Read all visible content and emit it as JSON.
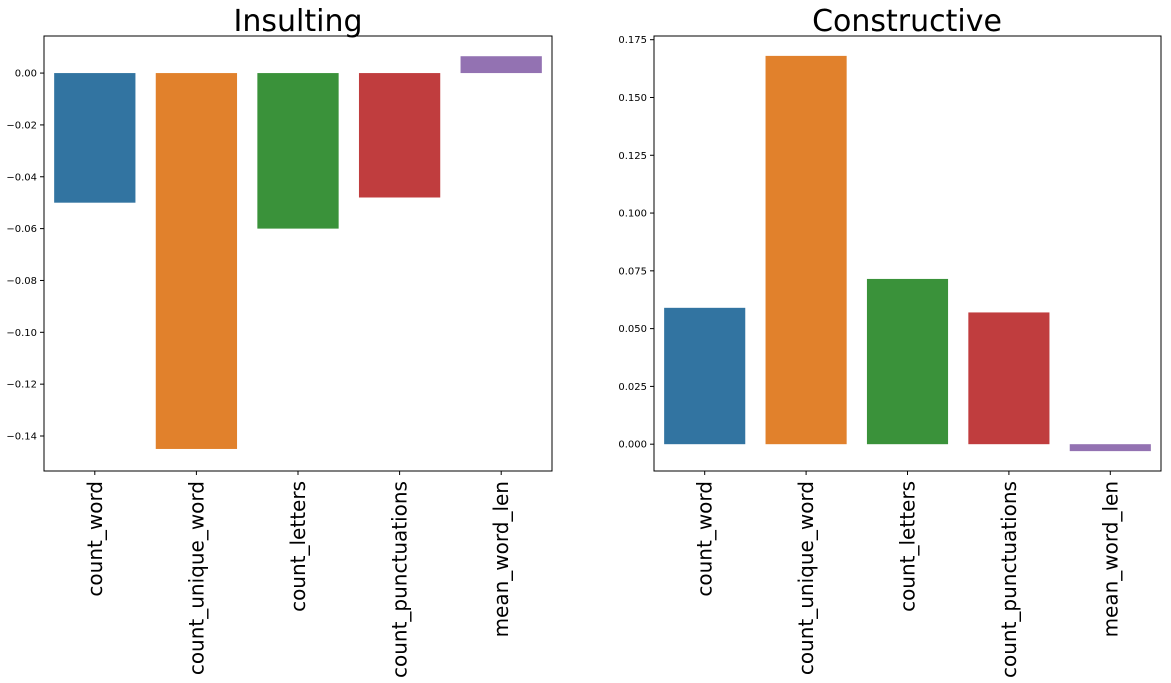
{
  "chart_data": [
    {
      "type": "bar",
      "title": "Insulting",
      "xlabel": "",
      "ylabel": "",
      "categories": [
        "count_word",
        "count_unique_word",
        "count_letters",
        "count_punctuations",
        "mean_word_len"
      ],
      "values": [
        -0.05,
        -0.145,
        -0.06,
        -0.048,
        0.0065
      ],
      "colors": [
        "#3274a1",
        "#e1812c",
        "#3a923a",
        "#c03d3e",
        "#9372b2"
      ],
      "ylim": [
        -0.1535,
        0.0143
      ],
      "yticks": [
        0.0,
        -0.02,
        -0.04,
        -0.06,
        -0.08,
        -0.1,
        -0.12,
        -0.14
      ],
      "ytick_labels": [
        "0.00",
        "−0.02",
        "−0.04",
        "−0.06",
        "−0.08",
        "−0.10",
        "−0.12",
        "−0.14"
      ],
      "grid": false,
      "legend": "none"
    },
    {
      "type": "bar",
      "title": "Constructive",
      "xlabel": "",
      "ylabel": "",
      "categories": [
        "count_word",
        "count_unique_word",
        "count_letters",
        "count_punctuations",
        "mean_word_len"
      ],
      "values": [
        0.059,
        0.168,
        0.0715,
        0.057,
        -0.003
      ],
      "colors": [
        "#3274a1",
        "#e1812c",
        "#3a923a",
        "#c03d3e",
        "#9372b2"
      ],
      "ylim": [
        -0.0116,
        0.1766
      ],
      "yticks": [
        0.0,
        0.025,
        0.05,
        0.075,
        0.1,
        0.125,
        0.15,
        0.175
      ],
      "ytick_labels": [
        "0.000",
        "0.025",
        "0.050",
        "0.075",
        "0.100",
        "0.125",
        "0.150",
        "0.175"
      ],
      "grid": false,
      "legend": "none"
    }
  ]
}
